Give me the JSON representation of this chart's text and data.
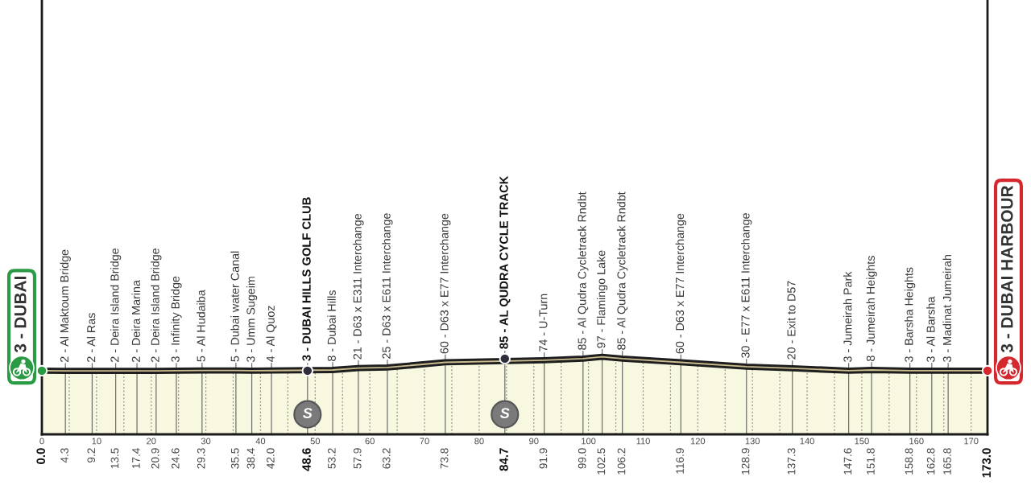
{
  "chart_data": {
    "type": "line",
    "xlim": [
      0,
      173
    ],
    "tick_labels": "x",
    "grid": "x",
    "xticks": [
      0,
      {
        "value": 5,
        "label": null
      },
      10,
      {
        "value": 15,
        "label": null
      },
      20,
      {
        "value": 25,
        "label": null
      },
      30,
      {
        "value": 35,
        "label": null
      },
      40,
      {
        "value": 45,
        "label": null
      },
      50,
      {
        "value": 55,
        "label": null
      },
      60,
      {
        "value": 65,
        "label": null
      },
      70,
      {
        "value": 75,
        "label": null
      },
      80,
      {
        "value": 85,
        "label": null
      },
      90,
      {
        "value": 95,
        "label": null
      },
      100,
      {
        "value": 105,
        "label": null
      },
      110,
      {
        "value": 115,
        "label": null
      },
      120,
      {
        "value": 125,
        "label": null
      },
      130,
      {
        "value": 135,
        "label": null
      },
      140,
      {
        "value": 145,
        "label": null
      },
      150,
      {
        "value": 155,
        "label": null
      },
      160,
      {
        "value": 165,
        "label": null
      },
      170
    ],
    "x2lim": [
      0,
      173
    ],
    "x2ticks": [
      {
        "value": 0,
        "label": "0.0"
      },
      4.3,
      9.2,
      13.5,
      17.4,
      20.9,
      24.6,
      29.3,
      35.5,
      38.4,
      {
        "value": 42,
        "label": "42.0"
      },
      48.6,
      53.2,
      57.9,
      63.2,
      73.8,
      84.7,
      91.9,
      {
        "value": 99,
        "label": "99.0"
      },
      102.5,
      106.2,
      116.9,
      128.9,
      137.3,
      147.6,
      151.8,
      158.8,
      162.8,
      165.8,
      {
        "value": 173,
        "label": "173.0"
      }
    ],
    "series": [
      {
        "color": "#1e1e1e",
        "x": [
          0,
          4.3,
          9.2,
          13.5,
          17.4,
          20.9,
          24.6,
          29.3,
          35.5,
          38.4,
          42.0,
          53.2,
          57.9,
          63.2,
          73.8,
          91.9,
          99.0,
          102.5,
          106.2,
          116.9,
          128.9,
          137.3,
          147.6,
          151.8,
          158.8,
          162.8,
          165.8,
          173.0
        ],
        "values": [
          3,
          2,
          2,
          2,
          2,
          2,
          3,
          5,
          5,
          3,
          4,
          8,
          21,
          25,
          60,
          74,
          85,
          97,
          85,
          60,
          30,
          20,
          3,
          8,
          3,
          3,
          3,
          3
        ],
        "value_labels": [
          null,
          "2 - Al Maktoum Bridge",
          "2 - Al Ras",
          "2 - Deira Island Bridge",
          "2 - Deira Marina",
          "2 - Deira Island Bridge",
          "3 - Infinity Bridge",
          "5 - Al Hudaiba",
          "5 - Dubai water Canal",
          "3 - Umm Sugeim",
          "4 - Al Quoz",
          "8 - Dubai Hills",
          "21 - D63 x E311 Interchange",
          "25 - D63 x E611 Interchange",
          "60 - D63 x E77 Interchange",
          "74 - U-Turn",
          "85 - Al Qudra Cycletrack Rndbt",
          "97 - Flamingo Lake",
          "85 - Al Qudra Cycletrack Rndbt",
          "60 - D63 x E77 Interchange",
          "30 - E77 x E611 Interchange",
          "20 - Exit to D57",
          "3 - Jumeirah Park",
          "8 - Jumeirah Heights",
          "3 - Barsha Heights",
          "3 - Al Barsha",
          "3 - Madinat Jumeirah",
          null
        ]
      },
      {
        "type": "scatter",
        "color": "#2d2d3c",
        "marker": "circle",
        "x": [
          48.6,
          84.7
        ],
        "values": [
          3,
          85
        ],
        "value_labels": [
          "3 - DUBAI HILLS GOLF CLUB",
          "85 - AL QUDRA CYCLE TRACK"
        ]
      },
      {
        "type": "scatter",
        "colors": [
          "#2a9a44",
          "#d4282e"
        ],
        "marker": "circle",
        "x": [
          0,
          173
        ],
        "values": [
          3,
          3
        ],
        "value_labels": [
          "3 - DUBAI",
          "3 - DUBAI HARBOUR"
        ]
      }
    ],
    "annotations": [
      "S",
      "S"
    ]
  }
}
